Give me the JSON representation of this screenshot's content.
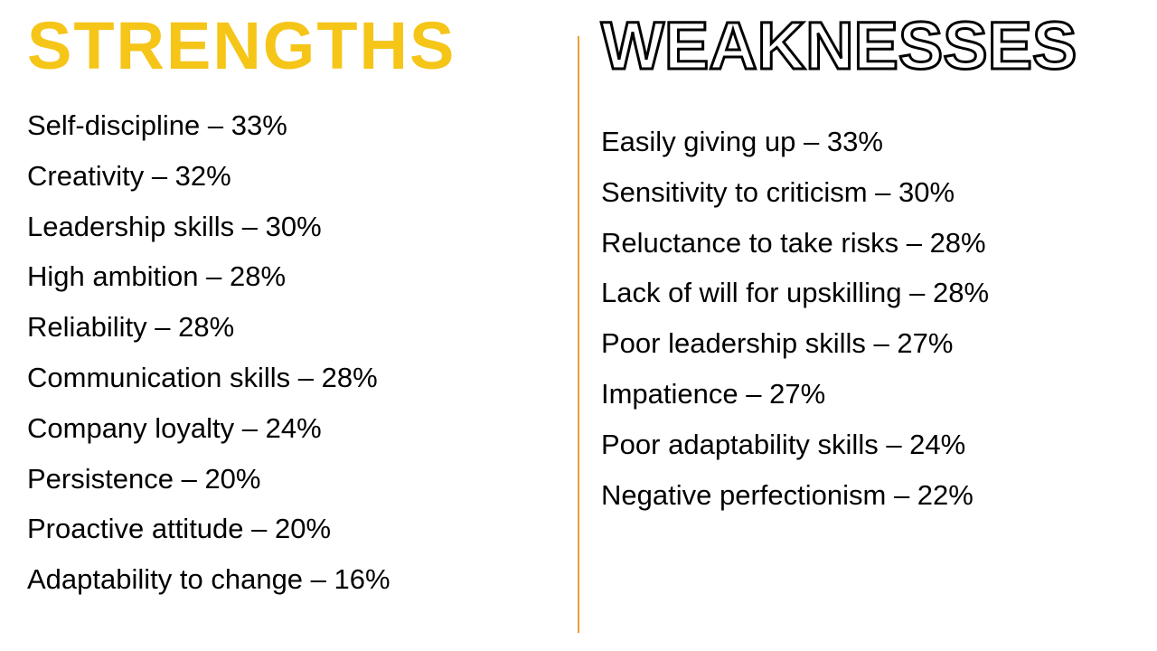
{
  "type": "infographic",
  "background_color": "#ffffff",
  "divider_color": "#e8a23a",
  "text_color": "#000000",
  "body_fontsize": 31,
  "heading_fontsize": 74,
  "strengths": {
    "title": "STRENGTHS",
    "title_color": "#f5c518",
    "title_weight": 900,
    "items": [
      {
        "label": "Self-discipline",
        "value": "33%"
      },
      {
        "label": "Creativity",
        "value": "32%"
      },
      {
        "label": "Leadership skills",
        "value": "30%"
      },
      {
        "label": "High ambition",
        "value": "28%"
      },
      {
        "label": "Reliability",
        "value": "28%"
      },
      {
        "label": "Communication skills",
        "value": "28%"
      },
      {
        "label": "Company loyalty",
        "value": "24%"
      },
      {
        "label": "Persistence",
        "value": "20%"
      },
      {
        "label": "Proactive attitude",
        "value": "20%"
      },
      {
        "label": "Adaptability to change",
        "value": "16%"
      }
    ]
  },
  "weaknesses": {
    "title": "WEAKNESSES",
    "title_fill_color": "#ffffff",
    "title_stroke_color": "#000000",
    "title_weight": 900,
    "items": [
      {
        "label": "Easily giving up",
        "value": "33%"
      },
      {
        "label": "Sensitivity to criticism",
        "value": "30%"
      },
      {
        "label": "Reluctance to take risks",
        "value": "28%"
      },
      {
        "label": "Lack of will for upskilling",
        "value": "28%"
      },
      {
        "label": "Poor leadership skills",
        "value": "27%"
      },
      {
        "label": "Impatience",
        "value": "27%"
      },
      {
        "label": "Poor adaptability skills",
        "value": "24%"
      },
      {
        "label": "Negative perfectionism",
        "value": "22%"
      }
    ]
  },
  "separator": " – "
}
